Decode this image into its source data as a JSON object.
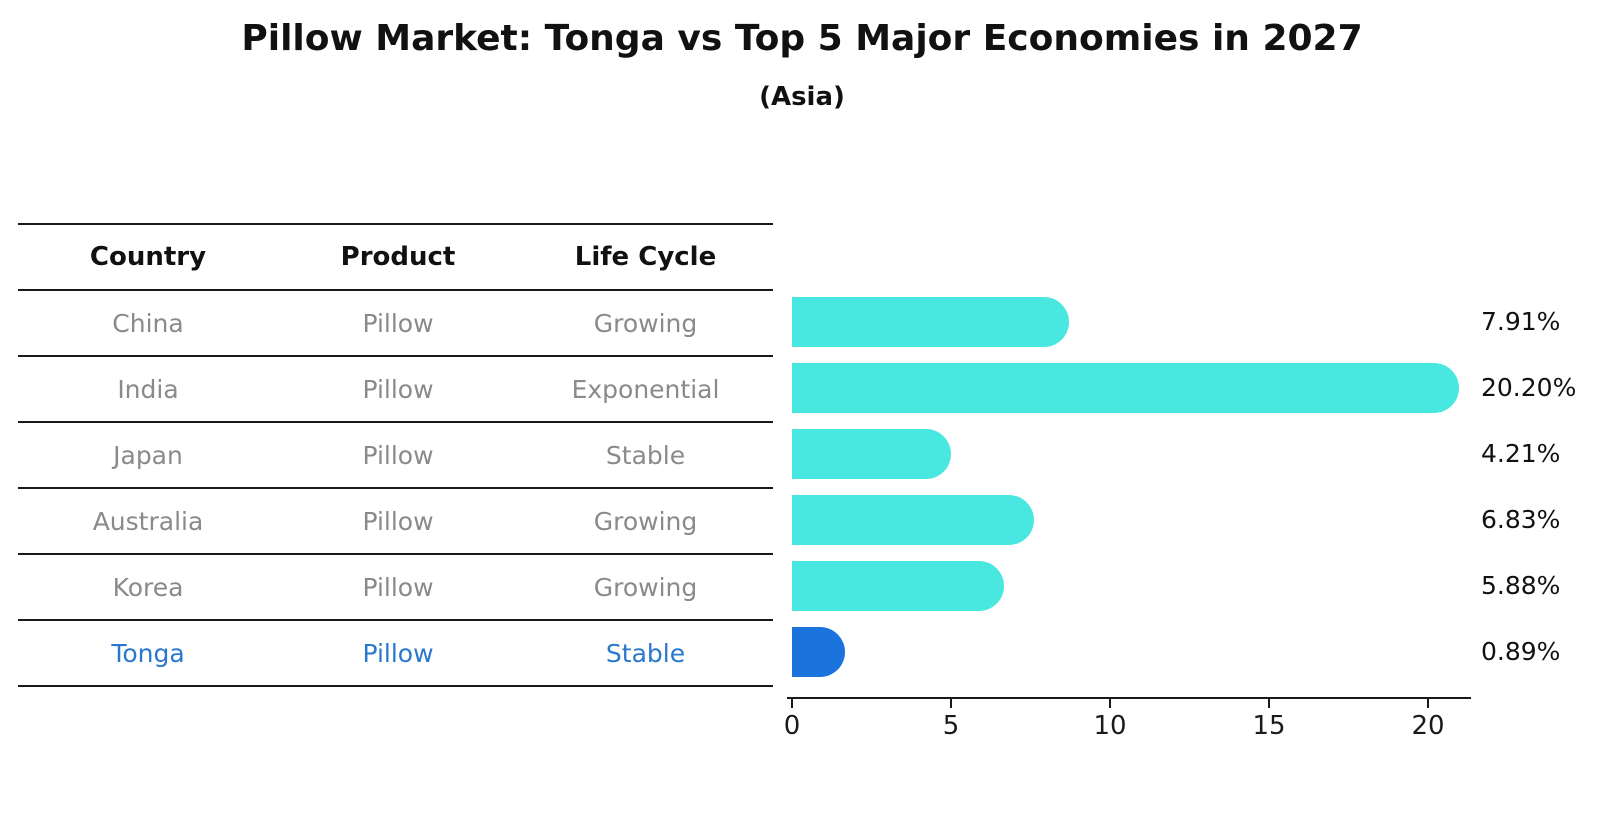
{
  "title": "Pillow Market: Tonga vs Top 5 Major Economies in 2027",
  "subtitle": "(Asia)",
  "table": {
    "headers": [
      "Country",
      "Product",
      "Life Cycle"
    ],
    "rows": [
      {
        "country": "China",
        "product": "Pillow",
        "life_cycle": "Growing"
      },
      {
        "country": "India",
        "product": "Pillow",
        "life_cycle": "Exponential"
      },
      {
        "country": "Japan",
        "product": "Pillow",
        "life_cycle": "Stable"
      },
      {
        "country": "Australia",
        "product": "Pillow",
        "life_cycle": "Growing"
      },
      {
        "country": "Korea",
        "product": "Pillow",
        "life_cycle": "Growing"
      },
      {
        "country": "Tonga",
        "product": "Pillow",
        "life_cycle": "Stable"
      }
    ],
    "highlight_row": "Tonga"
  },
  "chart_data": {
    "type": "bar",
    "orientation": "horizontal",
    "title": "Pillow Market: Tonga vs Top 5 Major Economies in 2027",
    "subtitle": "(Asia)",
    "categories": [
      "China",
      "India",
      "Japan",
      "Australia",
      "Korea",
      "Tonga"
    ],
    "values": [
      7.91,
      20.2,
      4.21,
      6.83,
      5.88,
      0.89
    ],
    "value_labels": [
      "7.91%",
      "20.20%",
      "4.21%",
      "6.83%",
      "5.88%",
      "0.89%"
    ],
    "xlabel": "",
    "ylabel": "",
    "xticks": [
      0,
      5,
      10,
      15,
      20
    ],
    "xlim": [
      0,
      21.3
    ],
    "grid": false,
    "legend": false,
    "bar_color": "#48e8e0",
    "highlight_bar_color": "#1b74dd",
    "highlight_index": 5
  },
  "colors": {
    "background": "#ffffff",
    "title_text": "#111111",
    "table_line": "#1a1a1a",
    "table_header_text": "#111111",
    "table_row_text": "#8a8a8a",
    "highlight_text": "#2a78cd",
    "axis": "#1a1a1a",
    "value_label_text": "#111111"
  }
}
